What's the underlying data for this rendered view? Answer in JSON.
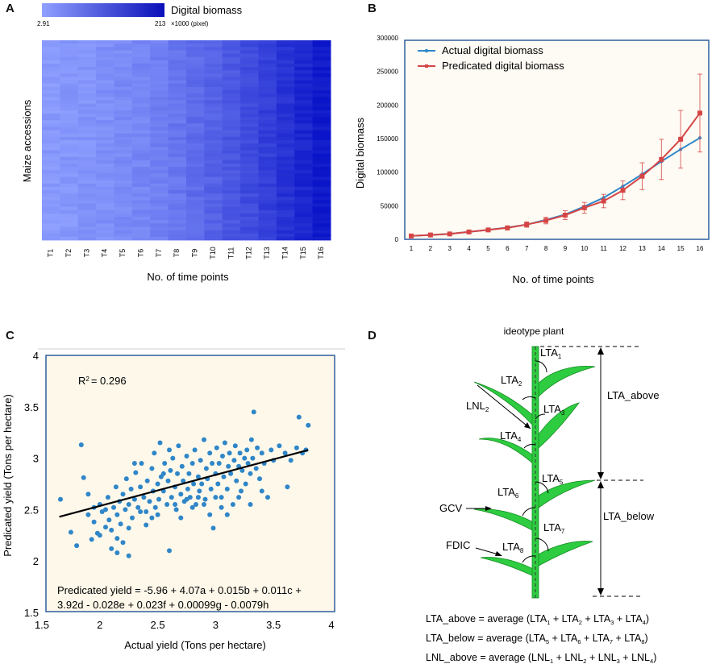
{
  "panels": {
    "a_letter": "A",
    "b_letter": "B",
    "c_letter": "C",
    "d_letter": "D"
  },
  "colors": {
    "heat_low": "#8fa0ff",
    "heat_high": "#0a14c8",
    "actual_line": "#2f86c8",
    "predicted_line": "#d64545",
    "scatter_point": "#2f86c8",
    "panel_bg": "#fdf8ea",
    "frame": "#2f5f9e",
    "leaf_green": "#2ecc40"
  },
  "chart_data": [
    {
      "id": "A",
      "type": "heatmap",
      "title": "Digital biomass",
      "colorbar_min": "2.91",
      "colorbar_max": "213",
      "colorbar_unit": "×1000 (pixel)",
      "ylabel": "Maize accessions",
      "xlabel": "No. of time points",
      "categories": [
        "T1",
        "T2",
        "T3",
        "T4",
        "T5",
        "T6",
        "T7",
        "T8",
        "T9",
        "T10",
        "T11",
        "T12",
        "T13",
        "T14",
        "T15",
        "T16"
      ],
      "column_level": [
        0.05,
        0.07,
        0.09,
        0.12,
        0.15,
        0.19,
        0.24,
        0.3,
        0.37,
        0.44,
        0.52,
        0.6,
        0.69,
        0.78,
        0.87,
        0.96
      ]
    },
    {
      "id": "B",
      "type": "line",
      "xlabel": "No. of time points",
      "ylabel": "Digital biomass",
      "x": [
        1,
        2,
        3,
        4,
        5,
        6,
        7,
        8,
        9,
        10,
        11,
        12,
        13,
        14,
        15,
        16
      ],
      "ylim": [
        0,
        300000
      ],
      "yticks": [
        "0",
        "50000",
        "100000",
        "150000",
        "200000",
        "250000",
        "300000"
      ],
      "series": [
        {
          "name": "Actual digital biomass",
          "values": [
            5000,
            6500,
            8000,
            11000,
            14000,
            17500,
            22000,
            29000,
            37000,
            49000,
            62000,
            79000,
            97000,
            116000,
            134000,
            151000
          ],
          "err": [
            0,
            0,
            0,
            0,
            0,
            0,
            0,
            0,
            0,
            0,
            0,
            0,
            0,
            0,
            0,
            0
          ]
        },
        {
          "name": "Predicated digital biomass",
          "values": [
            5000,
            6500,
            8000,
            11000,
            14000,
            17000,
            22000,
            28000,
            36000,
            47000,
            57000,
            73000,
            94000,
            119000,
            149000,
            188000
          ],
          "err": [
            1000,
            1200,
            1500,
            2000,
            2500,
            3000,
            4000,
            5000,
            6500,
            8000,
            10000,
            14000,
            20000,
            30000,
            43000,
            58000
          ]
        }
      ]
    },
    {
      "id": "C",
      "type": "scatter",
      "xlabel": "Actual yield (Tons per hectare)",
      "ylabel": "Predicated yield (Tons per hectare)",
      "xlim": [
        1.5,
        4
      ],
      "ylim": [
        1.5,
        4
      ],
      "xticks": [
        "1.5",
        "2",
        "2.5",
        "3",
        "3.5",
        "4"
      ],
      "yticks": [
        "1.5",
        "2",
        "2.5",
        "3",
        "3.5",
        "4"
      ],
      "r2_label": "R",
      "r2_value": "= 0.296",
      "equation_line1": "Predicated yield = -5.96 + 4.07a + 0.015b + 0.011c +",
      "equation_line2": "3.92d - 0.028e + 0.023f + 0.00099g - 0.0079h",
      "fit": {
        "x1": 1.65,
        "y1": 2.43,
        "x2": 3.8,
        "y2": 3.08
      },
      "points": [
        [
          1.66,
          2.6
        ],
        [
          1.75,
          2.28
        ],
        [
          1.8,
          2.15
        ],
        [
          1.84,
          3.13
        ],
        [
          1.86,
          2.81
        ],
        [
          1.9,
          2.45
        ],
        [
          1.93,
          2.21
        ],
        [
          1.95,
          2.38
        ],
        [
          1.98,
          2.27
        ],
        [
          2.0,
          2.55
        ],
        [
          2.02,
          2.48
        ],
        [
          2.05,
          2.33
        ],
        [
          2.07,
          2.62
        ],
        [
          2.08,
          2.4
        ],
        [
          2.1,
          2.3
        ],
        [
          2.12,
          2.52
        ],
        [
          2.14,
          2.72
        ],
        [
          2.15,
          2.45
        ],
        [
          2.17,
          2.58
        ],
        [
          2.18,
          2.36
        ],
        [
          2.2,
          2.65
        ],
        [
          2.22,
          2.5
        ],
        [
          2.23,
          2.8
        ],
        [
          2.25,
          2.55
        ],
        [
          2.27,
          2.7
        ],
        [
          2.28,
          2.42
        ],
        [
          2.3,
          2.6
        ],
        [
          2.31,
          2.86
        ],
        [
          2.33,
          2.52
        ],
        [
          2.35,
          2.72
        ],
        [
          2.36,
          2.95
        ],
        [
          2.38,
          2.62
        ],
        [
          2.4,
          2.48
        ],
        [
          2.41,
          2.78
        ],
        [
          2.43,
          2.58
        ],
        [
          2.45,
          2.9
        ],
        [
          2.46,
          2.68
        ],
        [
          2.47,
          3.05
        ],
        [
          2.48,
          2.52
        ],
        [
          2.5,
          2.75
        ],
        [
          2.51,
          2.6
        ],
        [
          2.52,
          3.15
        ],
        [
          2.53,
          2.82
        ],
        [
          2.55,
          2.68
        ],
        [
          2.56,
          2.95
        ],
        [
          2.58,
          2.55
        ],
        [
          2.59,
          2.78
        ],
        [
          2.6,
          2.1
        ],
        [
          2.61,
          2.88
        ],
        [
          2.62,
          2.62
        ],
        [
          2.63,
          3.0
        ],
        [
          2.65,
          2.72
        ],
        [
          2.66,
          2.5
        ],
        [
          2.67,
          2.85
        ],
        [
          2.68,
          3.12
        ],
        [
          2.7,
          2.65
        ],
        [
          2.71,
          2.92
        ],
        [
          2.72,
          2.78
        ],
        [
          2.73,
          2.58
        ],
        [
          2.75,
          3.02
        ],
        [
          2.76,
          2.7
        ],
        [
          2.77,
          2.85
        ],
        [
          2.78,
          2.62
        ],
        [
          2.8,
          2.95
        ],
        [
          2.81,
          2.75
        ],
        [
          2.82,
          3.08
        ],
        [
          2.83,
          2.55
        ],
        [
          2.85,
          2.82
        ],
        [
          2.86,
          2.68
        ],
        [
          2.87,
          2.98
        ],
        [
          2.88,
          2.75
        ],
        [
          2.9,
          3.18
        ],
        [
          2.91,
          2.6
        ],
        [
          2.92,
          2.9
        ],
        [
          2.93,
          2.8
        ],
        [
          2.95,
          3.05
        ],
        [
          2.96,
          2.7
        ],
        [
          2.97,
          2.95
        ],
        [
          2.98,
          2.32
        ],
        [
          3.0,
          2.85
        ],
        [
          3.01,
          3.1
        ],
        [
          3.02,
          2.75
        ],
        [
          3.03,
          2.95
        ],
        [
          3.05,
          2.62
        ],
        [
          3.06,
          3.02
        ],
        [
          3.07,
          2.82
        ],
        [
          3.08,
          3.15
        ],
        [
          3.1,
          2.7
        ],
        [
          3.11,
          2.92
        ],
        [
          3.12,
          3.05
        ],
        [
          3.13,
          2.85
        ],
        [
          3.15,
          2.55
        ],
        [
          3.16,
          2.98
        ],
        [
          3.17,
          3.12
        ],
        [
          3.18,
          2.78
        ],
        [
          3.2,
          2.92
        ],
        [
          3.21,
          3.05
        ],
        [
          3.22,
          2.68
        ],
        [
          3.23,
          2.88
        ],
        [
          3.25,
          3.0
        ],
        [
          3.26,
          2.75
        ],
        [
          3.27,
          3.08
        ],
        [
          3.28,
          2.95
        ],
        [
          3.3,
          2.85
        ],
        [
          3.31,
          3.18
        ],
        [
          3.32,
          3.0
        ],
        [
          3.33,
          3.45
        ],
        [
          3.35,
          2.9
        ],
        [
          3.36,
          3.1
        ],
        [
          3.38,
          2.8
        ],
        [
          3.4,
          3.05
        ],
        [
          3.42,
          2.95
        ],
        [
          3.45,
          2.62
        ],
        [
          3.48,
          3.08
        ],
        [
          3.5,
          2.98
        ],
        [
          3.55,
          3.12
        ],
        [
          3.6,
          3.05
        ],
        [
          3.62,
          2.72
        ],
        [
          3.65,
          2.98
        ],
        [
          3.7,
          3.1
        ],
        [
          3.72,
          3.4
        ],
        [
          3.75,
          3.05
        ],
        [
          3.78,
          3.08
        ],
        [
          3.8,
          3.32
        ],
        [
          2.15,
          2.22
        ],
        [
          2.25,
          2.32
        ],
        [
          2.35,
          2.48
        ],
        [
          2.45,
          2.42
        ],
        [
          2.55,
          2.85
        ],
        [
          2.65,
          2.55
        ],
        [
          2.75,
          2.6
        ],
        [
          2.85,
          2.62
        ],
        [
          2.95,
          2.45
        ],
        [
          3.05,
          2.52
        ],
        [
          2.0,
          2.25
        ],
        [
          2.05,
          2.5
        ],
        [
          2.1,
          2.12
        ],
        [
          2.2,
          2.18
        ],
        [
          2.3,
          2.95
        ],
        [
          2.4,
          2.35
        ],
        [
          2.5,
          2.45
        ],
        [
          2.6,
          3.08
        ],
        [
          2.7,
          2.42
        ],
        [
          2.8,
          2.52
        ],
        [
          2.9,
          2.55
        ],
        [
          3.0,
          2.62
        ],
        [
          3.1,
          2.45
        ],
        [
          3.2,
          2.62
        ],
        [
          3.3,
          2.55
        ],
        [
          3.4,
          2.68
        ],
        [
          1.95,
          2.52
        ],
        [
          1.9,
          2.65
        ],
        [
          2.15,
          2.08
        ],
        [
          2.25,
          2.05
        ]
      ]
    }
  ],
  "panel_d": {
    "title": "ideotype plant",
    "lta_labels": [
      "LTA",
      "LTA",
      "LTA",
      "LTA",
      "LTA",
      "LTA",
      "LTA",
      "LTA"
    ],
    "lta_subs": [
      "1",
      "2",
      "3",
      "4",
      "5",
      "6",
      "7",
      "8"
    ],
    "lnl_label": "LNL",
    "lnl_sub": "2",
    "lta_above": "LTA_above",
    "lta_below": "LTA_below",
    "gcv": "GCV",
    "fdic": "FDIC",
    "formula1": "LTA_above = average (LTA",
    "formula2": "LTA_below = average (LTA",
    "formula3": "LNL_above = average (LNL",
    "f1_subs": [
      "1",
      "2",
      "3",
      "4"
    ],
    "f2_subs": [
      "5",
      "6",
      "7",
      "8"
    ],
    "f3_subs": [
      "1",
      "2",
      "3",
      "4"
    ],
    "plus": " + ",
    "close": ")"
  }
}
